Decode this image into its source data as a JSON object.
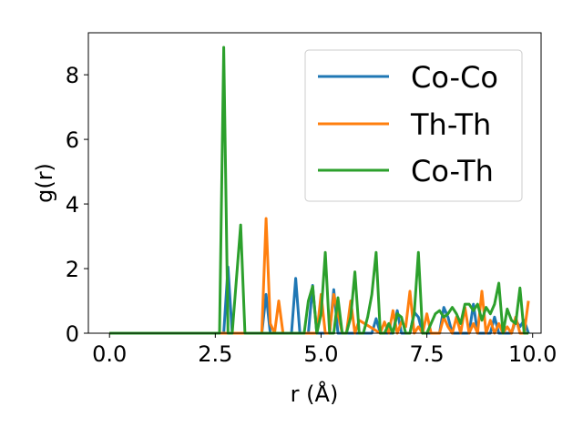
{
  "chart_data": {
    "type": "line",
    "title": "",
    "xlabel": "r (Å)",
    "ylabel": "g(r)",
    "xlim": [
      -0.5,
      10.2
    ],
    "ylim": [
      0,
      9.3
    ],
    "xticks": [
      0.0,
      2.5,
      5.0,
      7.5,
      10.0
    ],
    "xtick_labels": [
      "0.0",
      "2.5",
      "5.0",
      "7.5",
      "10.0"
    ],
    "yticks": [
      0,
      2,
      4,
      6,
      8
    ],
    "ytick_labels": [
      "0",
      "2",
      "4",
      "6",
      "8"
    ],
    "grid": false,
    "legend_position": "upper-right",
    "series": [
      {
        "name": "Co-Co",
        "color": "#1f77b4",
        "x": [
          0.0,
          2.7,
          2.8,
          2.9,
          3.0,
          3.6,
          3.7,
          3.8,
          4.3,
          4.4,
          4.5,
          4.7,
          4.8,
          4.9,
          5.2,
          5.3,
          5.4,
          6.2,
          6.3,
          6.4,
          6.7,
          6.8,
          6.9,
          7.1,
          7.2,
          7.3,
          7.4,
          7.8,
          7.9,
          8.0,
          8.1,
          8.5,
          8.6,
          8.7,
          9.0,
          9.1,
          9.2,
          9.5,
          9.6,
          9.7,
          9.8,
          9.9
        ],
        "y": [
          0,
          0,
          2.05,
          0,
          0,
          0,
          1.2,
          0,
          0,
          1.7,
          0,
          0,
          1.48,
          0,
          0,
          1.35,
          0,
          0,
          0.45,
          0,
          0,
          0.7,
          0,
          0,
          0.65,
          0.5,
          0,
          0,
          0.8,
          0.5,
          0,
          0,
          0.9,
          0,
          0,
          0.5,
          0,
          0,
          0.4,
          0.2,
          0.4,
          0
        ]
      },
      {
        "name": "Th-Th",
        "color": "#ff7f0e",
        "x": [
          0.0,
          3.6,
          3.7,
          3.8,
          3.9,
          4.0,
          4.1,
          4.9,
          5.0,
          5.1,
          5.2,
          5.3,
          5.5,
          5.6,
          5.7,
          5.8,
          5.9,
          6.4,
          6.5,
          6.6,
          6.7,
          6.8,
          6.9,
          7.0,
          7.1,
          7.2,
          7.3,
          7.4,
          7.5,
          7.6,
          7.7,
          7.8,
          7.9,
          8.0,
          8.1,
          8.2,
          8.3,
          8.4,
          8.5,
          8.6,
          8.7,
          8.8,
          8.9,
          9.0,
          9.1,
          9.2,
          9.3,
          9.4,
          9.5,
          9.6,
          9.7,
          9.8,
          9.9
        ],
        "y": [
          0,
          0,
          3.55,
          0.3,
          0,
          1.0,
          0,
          0,
          1.2,
          0,
          0,
          1.2,
          0,
          0,
          1.0,
          0,
          0.4,
          0,
          0.35,
          0,
          0.7,
          0,
          0.35,
          0.2,
          1.3,
          0,
          0.2,
          0,
          0.6,
          0,
          0,
          0,
          0.5,
          0.2,
          0,
          0.5,
          0,
          0.8,
          0,
          0.3,
          0,
          1.3,
          0,
          0.4,
          0,
          0.3,
          0,
          0.2,
          0,
          0.5,
          0,
          0,
          1.0
        ]
      },
      {
        "name": "Co-Th",
        "color": "#2ca02c",
        "x": [
          0.0,
          2.6,
          2.7,
          2.8,
          2.9,
          3.0,
          3.1,
          3.2,
          4.6,
          4.7,
          4.8,
          4.9,
          5.0,
          5.1,
          5.2,
          5.3,
          5.4,
          5.5,
          5.6,
          5.7,
          5.8,
          5.9,
          6.0,
          6.1,
          6.2,
          6.3,
          6.4,
          6.5,
          6.6,
          6.7,
          6.8,
          6.9,
          7.0,
          7.1,
          7.2,
          7.3,
          7.4,
          7.5,
          7.6,
          7.7,
          7.8,
          7.9,
          8.0,
          8.1,
          8.2,
          8.3,
          8.4,
          8.5,
          8.6,
          8.7,
          8.8,
          8.9,
          9.0,
          9.1,
          9.2,
          9.3,
          9.4,
          9.5,
          9.6,
          9.7,
          9.8,
          9.9
        ],
        "y": [
          0,
          0,
          8.85,
          0,
          0,
          1.7,
          3.35,
          0,
          0,
          1.0,
          1.45,
          0,
          0.6,
          2.5,
          0,
          0,
          1.1,
          0,
          0,
          0.5,
          1.9,
          0,
          0,
          0.5,
          1.2,
          2.5,
          0,
          0,
          0.3,
          0,
          0.6,
          0.5,
          0,
          0,
          0.6,
          2.5,
          0,
          0,
          0.3,
          0.6,
          0.7,
          0.5,
          0.6,
          0.8,
          0.6,
          0.3,
          0.9,
          0.9,
          0.7,
          0.9,
          0.4,
          0.8,
          0.6,
          0.9,
          1.55,
          0,
          0.75,
          0.4,
          0.3,
          1.4,
          0,
          0
        ]
      }
    ]
  }
}
